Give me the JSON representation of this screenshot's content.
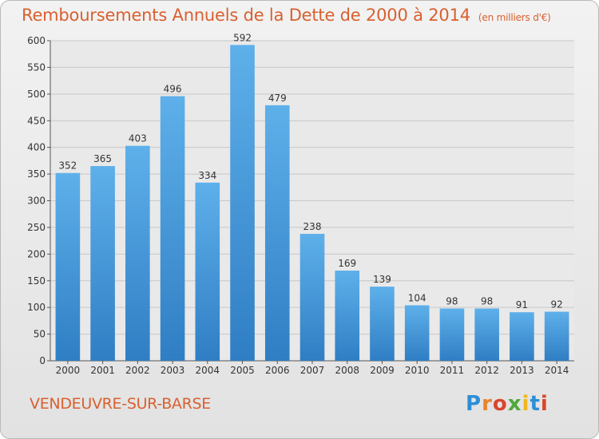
{
  "header": {
    "title": "Remboursements Annuels de la Dette de 2000 à 2014",
    "subtitle": "(en milliers d'€)"
  },
  "footer": {
    "commune": "VENDEUVRE-SUR-BARSE",
    "logo_text": "Proxiti"
  },
  "colors": {
    "title": "#d9602f",
    "bar_top": "#5eb0ea",
    "bar_bottom": "#2f7ec4",
    "grid": "#c8c8c8"
  },
  "chart_data": {
    "type": "bar",
    "title": "Remboursements Annuels de la Dette de 2000 à 2014",
    "xlabel": "",
    "ylabel": "",
    "categories": [
      "2000",
      "2001",
      "2002",
      "2003",
      "2004",
      "2005",
      "2006",
      "2007",
      "2008",
      "2009",
      "2010",
      "2011",
      "2012",
      "2013",
      "2014"
    ],
    "values": [
      352,
      365,
      403,
      496,
      334,
      592,
      479,
      238,
      169,
      139,
      104,
      98,
      98,
      91,
      92
    ],
    "ylim": [
      0,
      600
    ],
    "yticks": [
      0,
      50,
      100,
      150,
      200,
      250,
      300,
      350,
      400,
      450,
      500,
      550,
      600
    ],
    "grid": true
  }
}
